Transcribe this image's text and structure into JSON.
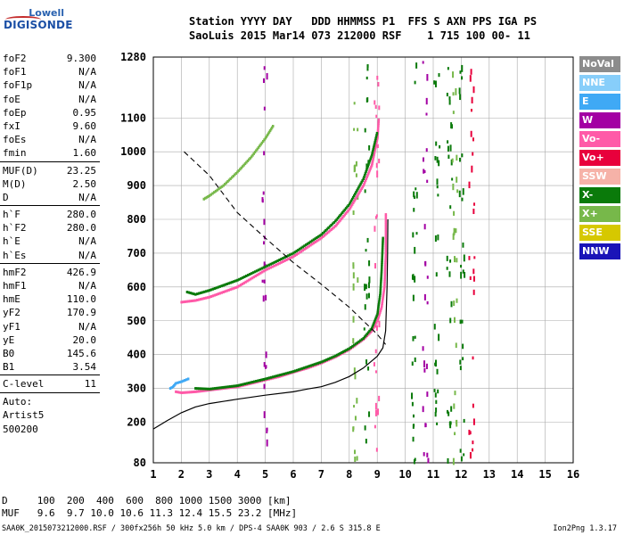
{
  "logo": {
    "line1": "Lowell",
    "line2": "DIGISONDE"
  },
  "header": {
    "line1": "Station YYYY DAY   DDD HHMMSS P1  FFS S AXN PPS IGA PS",
    "line2": "SaoLuis 2015 Mar14 073 212000 RSF    1 715 100 00- 11"
  },
  "params": {
    "group1": [
      {
        "name": "foF2",
        "value": "9.300"
      },
      {
        "name": "foF1",
        "value": "N/A"
      },
      {
        "name": "foF1p",
        "value": "N/A"
      },
      {
        "name": "foE",
        "value": "N/A"
      },
      {
        "name": "foEp",
        "value": "0.95"
      },
      {
        "name": "fxI",
        "value": "9.60"
      },
      {
        "name": "foEs",
        "value": "N/A"
      },
      {
        "name": "fmin",
        "value": "1.60"
      }
    ],
    "group2": [
      {
        "name": "MUF(D)",
        "value": "23.25"
      },
      {
        "name": "M(D)",
        "value": "2.50"
      },
      {
        "name": "D",
        "value": "N/A"
      }
    ],
    "group3": [
      {
        "name": "h`F",
        "value": "280.0"
      },
      {
        "name": "h`F2",
        "value": "280.0"
      },
      {
        "name": "h`E",
        "value": "N/A"
      },
      {
        "name": "h`Es",
        "value": "N/A"
      }
    ],
    "group4": [
      {
        "name": "hmF2",
        "value": "426.9"
      },
      {
        "name": "hmF1",
        "value": "N/A"
      },
      {
        "name": "hmE",
        "value": "110.0"
      },
      {
        "name": "yF2",
        "value": "170.9"
      },
      {
        "name": "yF1",
        "value": "N/A"
      },
      {
        "name": "yE",
        "value": "20.0"
      },
      {
        "name": "B0",
        "value": "145.6"
      },
      {
        "name": "B1",
        "value": "3.54"
      }
    ],
    "group5": [
      {
        "name": "C-level",
        "value": "11"
      }
    ],
    "auto": [
      "Auto:",
      "Artist5",
      "500200"
    ]
  },
  "footer": {
    "d_line": "D     100  200  400  600  800 1000 1500 3000 [km]",
    "muf_line": "MUF   9.6  9.7 10.0 10.6 11.3 12.4 15.5 23.2 [MHz]",
    "file_line": "SAA0K_2015073212000.RSF / 300fx256h 50 kHz 5.0 km / DPS-4 SAA0K 903 / 2.6 S 315.8 E",
    "version": "Ion2Png 1.3.17"
  },
  "legend": [
    {
      "label": "NoVal",
      "color": "#8c8c8c"
    },
    {
      "label": "NNE",
      "color": "#87cefa"
    },
    {
      "label": "E",
      "color": "#3fa9f5"
    },
    {
      "label": "W",
      "color": "#a300a3"
    },
    {
      "label": "Vo-",
      "color": "#ff5aa8"
    },
    {
      "label": "Vo+",
      "color": "#e8003c"
    },
    {
      "label": "SSW",
      "color": "#f6b2a8"
    },
    {
      "label": "X-",
      "color": "#0a7a0a"
    },
    {
      "label": "X+",
      "color": "#77b84a"
    },
    {
      "label": "SSE",
      "color": "#d6c800"
    },
    {
      "label": "NNW",
      "color": "#1a14b8"
    }
  ],
  "chart_data": {
    "type": "scatter",
    "xlim": [
      1,
      16
    ],
    "ylim": [
      80,
      1280
    ],
    "x_ticks": [
      1,
      2,
      3,
      4,
      5,
      6,
      7,
      8,
      9,
      10,
      11,
      12,
      13,
      14,
      15,
      16
    ],
    "y_ticks": [
      80,
      200,
      300,
      400,
      500,
      600,
      700,
      800,
      900,
      1000,
      1100,
      1280
    ],
    "y_tick_labels": [
      80,
      200,
      300,
      400,
      500,
      600,
      700,
      800,
      900,
      1000,
      1100,
      1280
    ],
    "grid": true,
    "traces": [
      {
        "name": "O-trace F2",
        "color": "#ff5aa8",
        "points": [
          [
            1.8,
            290
          ],
          [
            2.0,
            287
          ],
          [
            2.5,
            290
          ],
          [
            3.0,
            295
          ],
          [
            3.5,
            300
          ],
          [
            4.0,
            305
          ],
          [
            4.5,
            315
          ],
          [
            5.0,
            325
          ],
          [
            5.5,
            335
          ],
          [
            6.0,
            348
          ],
          [
            6.5,
            360
          ],
          [
            7.0,
            375
          ],
          [
            7.5,
            393
          ],
          [
            8.0,
            415
          ],
          [
            8.5,
            445
          ],
          [
            8.8,
            470
          ],
          [
            9.0,
            500
          ],
          [
            9.15,
            540
          ],
          [
            9.25,
            600
          ],
          [
            9.3,
            700
          ],
          [
            9.3,
            820
          ]
        ]
      },
      {
        "name": "X-trace F2",
        "color": "#0a7a0a",
        "points": [
          [
            2.5,
            300
          ],
          [
            3.0,
            298
          ],
          [
            4.0,
            308
          ],
          [
            5.0,
            328
          ],
          [
            6.0,
            350
          ],
          [
            7.0,
            378
          ],
          [
            7.5,
            396
          ],
          [
            8.0,
            418
          ],
          [
            8.5,
            448
          ],
          [
            8.8,
            478
          ],
          [
            9.0,
            520
          ],
          [
            9.1,
            580
          ],
          [
            9.15,
            650
          ],
          [
            9.2,
            750
          ]
        ]
      },
      {
        "name": "2nd hop O",
        "color": "#ff5aa8",
        "points": [
          [
            2.0,
            555
          ],
          [
            2.5,
            560
          ],
          [
            3.0,
            570
          ],
          [
            4.0,
            600
          ],
          [
            5.0,
            650
          ],
          [
            6.0,
            690
          ],
          [
            7.0,
            745
          ],
          [
            7.5,
            780
          ],
          [
            8.0,
            830
          ],
          [
            8.5,
            900
          ],
          [
            8.8,
            960
          ],
          [
            9.0,
            1040
          ],
          [
            9.05,
            1100
          ]
        ]
      },
      {
        "name": "2nd hop X",
        "color": "#0a7a0a",
        "points": [
          [
            2.2,
            585
          ],
          [
            2.5,
            578
          ],
          [
            3.0,
            590
          ],
          [
            4.0,
            620
          ],
          [
            5.0,
            660
          ],
          [
            6.0,
            700
          ],
          [
            7.0,
            755
          ],
          [
            7.5,
            795
          ],
          [
            8.0,
            845
          ],
          [
            8.5,
            920
          ],
          [
            8.8,
            990
          ],
          [
            9.0,
            1060
          ]
        ]
      },
      {
        "name": "3rd hop",
        "color": "#77b84a",
        "points": [
          [
            2.8,
            860
          ],
          [
            3.0,
            870
          ],
          [
            3.5,
            900
          ],
          [
            4.0,
            940
          ],
          [
            4.5,
            985
          ],
          [
            5.0,
            1040
          ],
          [
            5.3,
            1080
          ]
        ]
      },
      {
        "name": "Es/low echoes",
        "color": "#3fa9f5",
        "points": [
          [
            1.6,
            300
          ],
          [
            1.7,
            305
          ],
          [
            1.8,
            315
          ],
          [
            2.0,
            320
          ],
          [
            2.3,
            330
          ]
        ]
      }
    ],
    "profile_line": {
      "name": "profile",
      "color": "#000000",
      "points": [
        [
          1.0,
          180
        ],
        [
          1.5,
          205
        ],
        [
          2.0,
          228
        ],
        [
          2.5,
          245
        ],
        [
          3.0,
          255
        ],
        [
          4.0,
          268
        ],
        [
          5.0,
          280
        ],
        [
          6.0,
          290
        ],
        [
          6.5,
          298
        ],
        [
          7.0,
          305
        ],
        [
          7.5,
          318
        ],
        [
          8.0,
          335
        ],
        [
          8.5,
          360
        ],
        [
          9.0,
          395
        ],
        [
          9.2,
          420
        ],
        [
          9.3,
          470
        ],
        [
          9.35,
          600
        ],
        [
          9.37,
          700
        ],
        [
          9.38,
          800
        ]
      ]
    },
    "muf_curve": {
      "name": "MUF",
      "color": "#000000",
      "dashed": true,
      "points": [
        [
          2.1,
          1000
        ],
        [
          3.0,
          930
        ],
        [
          4.0,
          820
        ],
        [
          5.0,
          745
        ],
        [
          6.0,
          672
        ],
        [
          7.0,
          608
        ],
        [
          8.0,
          540
        ],
        [
          8.5,
          500
        ],
        [
          9.0,
          460
        ],
        [
          9.3,
          430
        ]
      ]
    }
  }
}
